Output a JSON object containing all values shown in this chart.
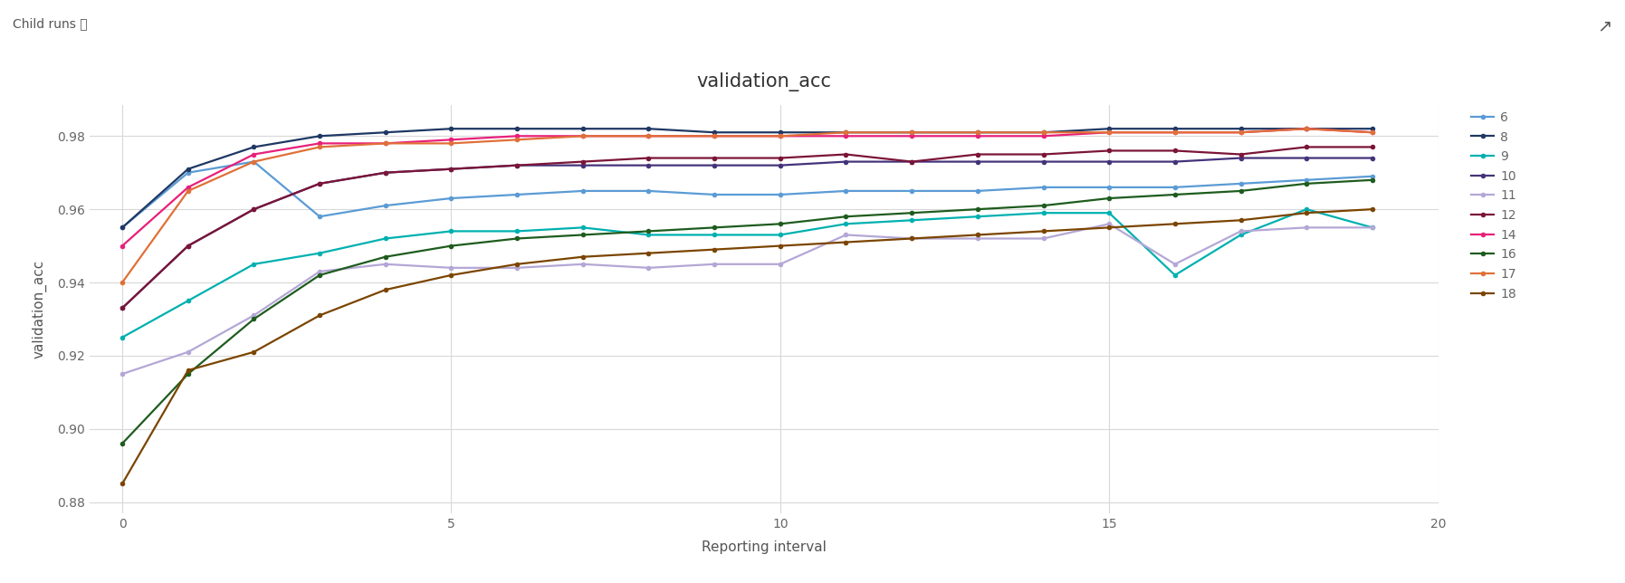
{
  "title": "validation_acc",
  "xlabel": "Reporting interval",
  "ylabel": "validation_acc",
  "xlim": [
    -0.5,
    20
  ],
  "ylim": [
    0.877,
    0.9885
  ],
  "yticks": [
    0.88,
    0.9,
    0.92,
    0.94,
    0.96,
    0.98
  ],
  "xticks": [
    0,
    5,
    10,
    15,
    20
  ],
  "bg_color": "#ffffff",
  "grid_color": "#d8d8d8",
  "series": [
    {
      "label": "6",
      "color": "#5b9bd5",
      "x": [
        0,
        1,
        2,
        3,
        4,
        5,
        6,
        7,
        8,
        9,
        10,
        11,
        12,
        13,
        14,
        15,
        16,
        17,
        18,
        19
      ],
      "y": [
        0.955,
        0.97,
        0.973,
        0.958,
        0.961,
        0.963,
        0.964,
        0.965,
        0.965,
        0.964,
        0.964,
        0.965,
        0.965,
        0.965,
        0.966,
        0.966,
        0.966,
        0.967,
        0.968,
        0.969
      ]
    },
    {
      "label": "8",
      "color": "#1f3864",
      "x": [
        0,
        1,
        2,
        3,
        4,
        5,
        6,
        7,
        8,
        9,
        10,
        11,
        12,
        13,
        14,
        15,
        16,
        17,
        18,
        19
      ],
      "y": [
        0.955,
        0.971,
        0.977,
        0.98,
        0.981,
        0.982,
        0.982,
        0.982,
        0.982,
        0.981,
        0.981,
        0.981,
        0.981,
        0.981,
        0.981,
        0.982,
        0.982,
        0.982,
        0.982,
        0.982
      ]
    },
    {
      "label": "9",
      "color": "#00b0b0",
      "x": [
        0,
        1,
        2,
        3,
        4,
        5,
        6,
        7,
        8,
        9,
        10,
        11,
        12,
        13,
        14,
        15,
        16,
        17,
        18,
        19
      ],
      "y": [
        0.925,
        0.935,
        0.945,
        0.948,
        0.952,
        0.954,
        0.954,
        0.955,
        0.953,
        0.953,
        0.953,
        0.956,
        0.957,
        0.958,
        0.959,
        0.959,
        0.942,
        0.953,
        0.96,
        0.955
      ]
    },
    {
      "label": "10",
      "color": "#44337a",
      "x": [
        0,
        1,
        2,
        3,
        4,
        5,
        6,
        7,
        8,
        9,
        10,
        11,
        12,
        13,
        14,
        15,
        16,
        17,
        18,
        19
      ],
      "y": [
        0.933,
        0.95,
        0.96,
        0.967,
        0.97,
        0.971,
        0.972,
        0.972,
        0.972,
        0.972,
        0.972,
        0.973,
        0.973,
        0.973,
        0.973,
        0.973,
        0.973,
        0.974,
        0.974,
        0.974
      ]
    },
    {
      "label": "11",
      "color": "#b4a7d6",
      "x": [
        0,
        1,
        2,
        3,
        4,
        5,
        6,
        7,
        8,
        9,
        10,
        11,
        12,
        13,
        14,
        15,
        16,
        17,
        18,
        19
      ],
      "y": [
        0.915,
        0.921,
        0.931,
        0.943,
        0.945,
        0.944,
        0.944,
        0.945,
        0.944,
        0.945,
        0.945,
        0.953,
        0.952,
        0.952,
        0.952,
        0.956,
        0.945,
        0.954,
        0.955,
        0.955
      ]
    },
    {
      "label": "12",
      "color": "#7b1538",
      "x": [
        0,
        1,
        2,
        3,
        4,
        5,
        6,
        7,
        8,
        9,
        10,
        11,
        12,
        13,
        14,
        15,
        16,
        17,
        18,
        19
      ],
      "y": [
        0.933,
        0.95,
        0.96,
        0.967,
        0.97,
        0.971,
        0.972,
        0.973,
        0.974,
        0.974,
        0.974,
        0.975,
        0.973,
        0.975,
        0.975,
        0.976,
        0.976,
        0.975,
        0.977,
        0.977
      ]
    },
    {
      "label": "14",
      "color": "#e8207a",
      "x": [
        0,
        1,
        2,
        3,
        4,
        5,
        6,
        7,
        8,
        9,
        10,
        11,
        12,
        13,
        14,
        15,
        16,
        17,
        18,
        19
      ],
      "y": [
        0.95,
        0.966,
        0.975,
        0.978,
        0.978,
        0.979,
        0.98,
        0.98,
        0.98,
        0.98,
        0.98,
        0.98,
        0.98,
        0.98,
        0.98,
        0.981,
        0.981,
        0.981,
        0.982,
        0.981
      ]
    },
    {
      "label": "16",
      "color": "#1e5c1e",
      "x": [
        0,
        1,
        2,
        3,
        4,
        5,
        6,
        7,
        8,
        9,
        10,
        11,
        12,
        13,
        14,
        15,
        16,
        17,
        18,
        19
      ],
      "y": [
        0.896,
        0.915,
        0.93,
        0.942,
        0.947,
        0.95,
        0.952,
        0.953,
        0.954,
        0.955,
        0.956,
        0.958,
        0.959,
        0.96,
        0.961,
        0.963,
        0.964,
        0.965,
        0.967,
        0.968
      ]
    },
    {
      "label": "17",
      "color": "#e07038",
      "x": [
        0,
        1,
        2,
        3,
        4,
        5,
        6,
        7,
        8,
        9,
        10,
        11,
        12,
        13,
        14,
        15,
        16,
        17,
        18,
        19
      ],
      "y": [
        0.94,
        0.965,
        0.973,
        0.977,
        0.978,
        0.978,
        0.979,
        0.98,
        0.98,
        0.98,
        0.98,
        0.981,
        0.981,
        0.981,
        0.981,
        0.981,
        0.981,
        0.981,
        0.982,
        0.981
      ]
    },
    {
      "label": "18",
      "color": "#7b4500",
      "x": [
        0,
        1,
        2,
        3,
        4,
        5,
        6,
        7,
        8,
        9,
        10,
        11,
        12,
        13,
        14,
        15,
        16,
        17,
        18,
        19
      ],
      "y": [
        0.885,
        0.916,
        0.921,
        0.931,
        0.938,
        0.942,
        0.945,
        0.947,
        0.948,
        0.949,
        0.95,
        0.951,
        0.952,
        0.953,
        0.954,
        0.955,
        0.956,
        0.957,
        0.959,
        0.96
      ]
    }
  ],
  "header_text": "Child runs ⓘ",
  "expand_icon": "↗",
  "header_fontsize": 10,
  "title_fontsize": 15,
  "axis_label_fontsize": 11,
  "tick_fontsize": 10,
  "header_color": "#555555",
  "title_color": "#333333",
  "axis_label_color": "#555555",
  "tick_color": "#666666",
  "legend_fontsize": 10,
  "marker_size": 4,
  "line_width": 1.6
}
